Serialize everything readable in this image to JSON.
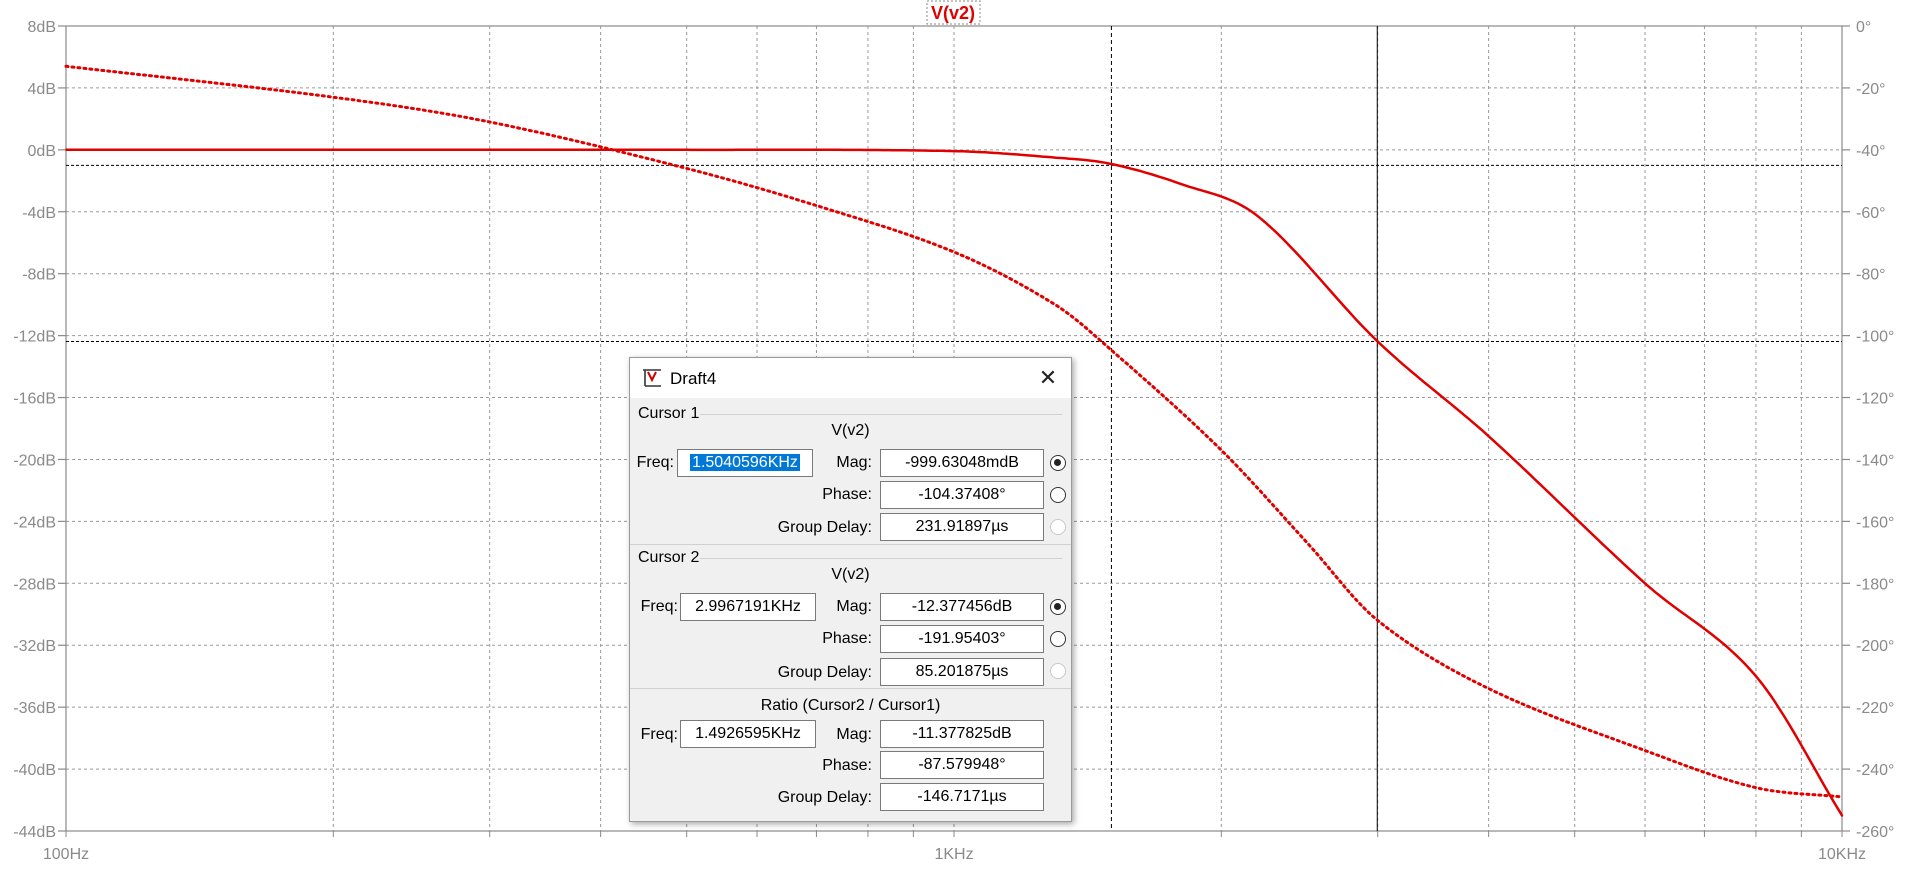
{
  "chart_data": {
    "type": "line",
    "title": "V(v2)",
    "x_axis": {
      "scale": "log",
      "range": [
        100,
        10000
      ],
      "ticks": [
        100,
        1000,
        10000
      ],
      "tick_labels": [
        "100Hz",
        "1KHz",
        "10KHz"
      ]
    },
    "y_left": {
      "range": [
        -44,
        8
      ],
      "step": 4,
      "tick_labels": [
        "8dB",
        "4dB",
        "0dB",
        "-4dB",
        "-8dB",
        "-12dB",
        "-16dB",
        "-20dB",
        "-24dB",
        "-28dB",
        "-32dB",
        "-36dB",
        "-40dB",
        "-44dB"
      ]
    },
    "y_right": {
      "range": [
        -260,
        0
      ],
      "step": 20,
      "tick_labels": [
        "0°",
        "-20°",
        "-40°",
        "-60°",
        "-80°",
        "-100°",
        "-120°",
        "-140°",
        "-160°",
        "-180°",
        "-200°",
        "-220°",
        "-240°",
        "-260°"
      ]
    },
    "grid": true,
    "series": [
      {
        "kind": "magnitude",
        "style": "solid",
        "color": "#e00000",
        "x": [
          100,
          500,
          1000,
          1300,
          1500,
          1800,
          2200,
          3000,
          4000,
          6000,
          8000,
          10000
        ],
        "y": [
          0,
          0,
          -0.08,
          -0.5,
          -0.9,
          -2.2,
          -4.3,
          -12.38,
          -18.5,
          -28.0,
          -34.0,
          -43.0
        ]
      },
      {
        "kind": "phase",
        "style": "dotted",
        "color": "#e00000",
        "x": [
          100,
          200,
          300,
          500,
          700,
          1000,
          1300,
          1500,
          2000,
          2500,
          3000,
          4000,
          6000,
          8000,
          10000
        ],
        "y": [
          -13,
          -23,
          -31,
          -46,
          -58,
          -73,
          -90,
          -104.4,
          -137,
          -167,
          -192,
          -214,
          -234,
          -246,
          -249
        ]
      }
    ],
    "cursors": [
      {
        "name": "cursor-1",
        "x": 1504.0596,
        "line": "dashed"
      },
      {
        "name": "cursor-2",
        "x": 2996.7191,
        "line": "solid"
      }
    ],
    "cursor_levels_db": [
      -1.0,
      -12.38
    ]
  },
  "cursor_window": {
    "title": "Draft4",
    "close_glyph": "✕",
    "cursor1": {
      "label": "Cursor 1",
      "trace": "V(v2)",
      "freq_label": "Freq:",
      "freq": "1.5040596KHz",
      "mag_label": "Mag:",
      "mag": "-999.63048mdB",
      "phase_label": "Phase:",
      "phase": "-104.37408°",
      "gd_label": "Group Delay:",
      "gd": "231.91897µs"
    },
    "cursor2": {
      "label": "Cursor 2",
      "trace": "V(v2)",
      "freq_label": "Freq:",
      "freq": "2.9967191KHz",
      "mag_label": "Mag:",
      "mag": "-12.377456dB",
      "phase_label": "Phase:",
      "phase": "-191.95403°",
      "gd_label": "Group Delay:",
      "gd": "85.201875µs"
    },
    "ratio": {
      "label": "Ratio (Cursor2 / Cursor1)",
      "freq_label": "Freq:",
      "freq": "1.4926595KHz",
      "mag_label": "Mag:",
      "mag": "-11.377825dB",
      "phase_label": "Phase:",
      "phase": "-87.579948°",
      "gd_label": "Group Delay:",
      "gd": "-146.7171µs"
    }
  }
}
